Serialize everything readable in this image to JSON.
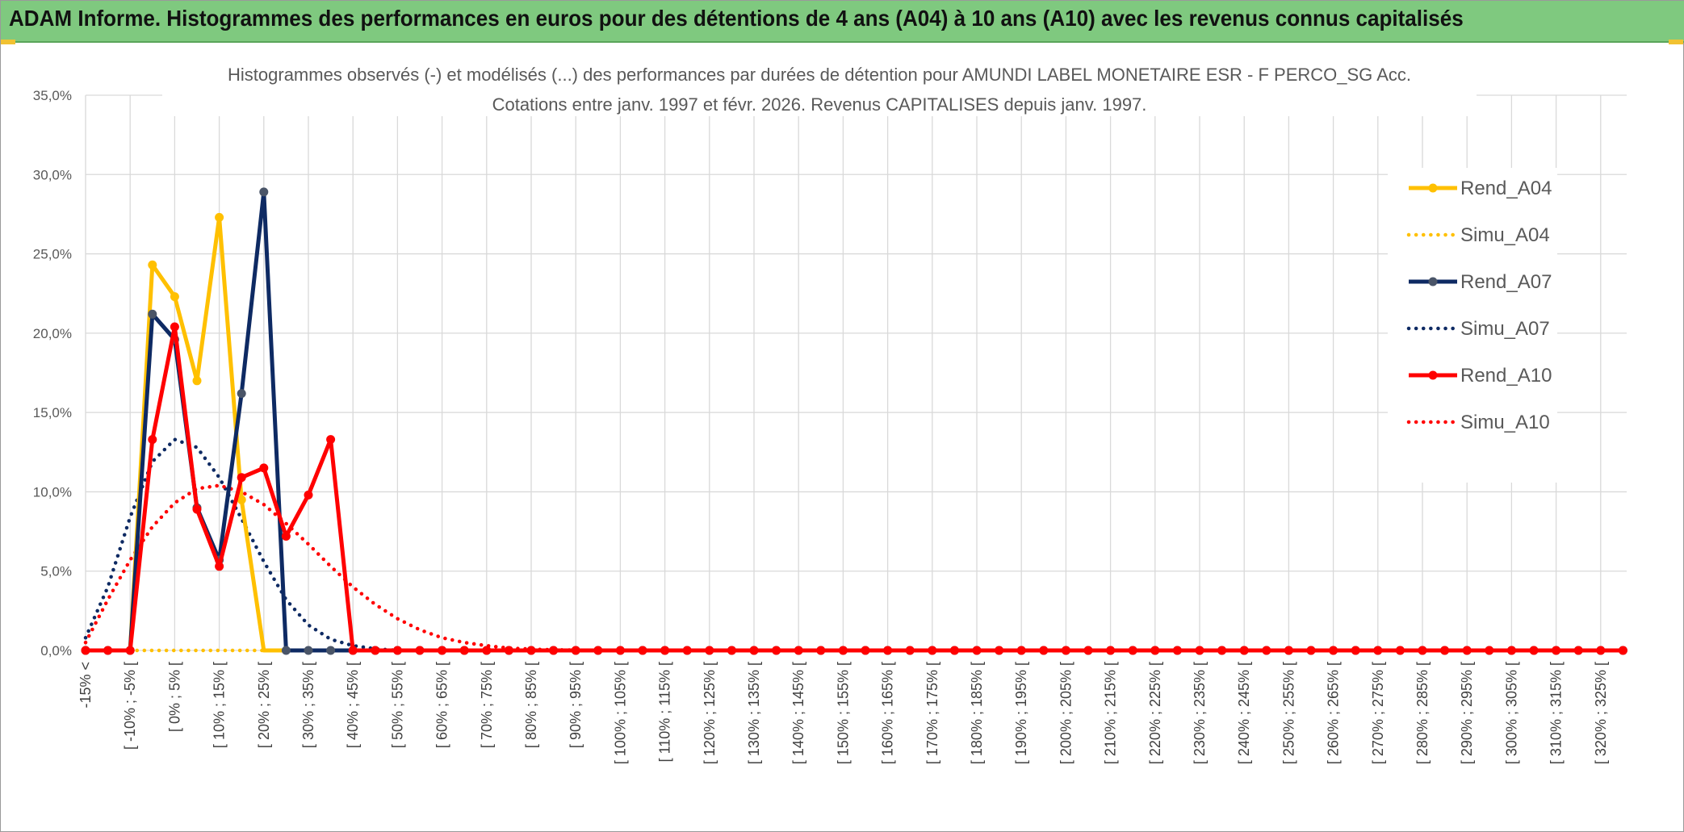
{
  "banner": {
    "title": "ADAM Informe. Histogrammes des performances en euros pour des détentions de 4 ans (A04) à 10 ans (A10) avec les revenus connus capitalisés"
  },
  "colors": {
    "banner_bg": "#7fc97f",
    "accent_corner": "#f1c232",
    "A04": "#ffc000",
    "A07": "#0e2a63",
    "A07_marker": "#4a5568",
    "A10": "#ff0000"
  },
  "chart_data": {
    "type": "line",
    "title_line1": "Histogrammes observés (-) et modélisés (...) des performances par durées de détention pour AMUNDI LABEL MONETAIRE ESR - F PERCO_SG Acc.",
    "title_line2": "Cotations entre janv. 1997 et févr. 2026. Revenus CAPITALISES depuis janv. 1997.",
    "ylim": [
      0,
      35
    ],
    "y_ticks": [
      "0,0%",
      "5,0%",
      "10,0%",
      "15,0%",
      "20,0%",
      "25,0%",
      "30,0%",
      "35,0%"
    ],
    "grid": true,
    "legend_position": "top-right",
    "x_tick_labels": [
      "-15% <",
      "[ -10% ; -5% [",
      "[ 0% ; 5% [",
      "[ 10% ; 15% [",
      "[ 20% ; 25% [",
      "[ 30% ; 35% [",
      "[ 40% ; 45% [",
      "[ 50% ; 55% [",
      "[ 60% ; 65% [",
      "[ 70% ; 75% [",
      "[ 80% ; 85% [",
      "[ 90% ; 95% [",
      "[ 100% ; 105% [",
      "[ 110% ; 115% [",
      "[ 120% ; 125% [",
      "[ 130% ; 135% [",
      "[ 140% ; 145% [",
      "[ 150% ; 155% [",
      "[ 160% ; 165% [",
      "[ 170% ; 175% [",
      "[ 180% ; 185% [",
      "[ 190% ; 195% [",
      "[ 200% ; 205% [",
      "[ 210% ; 215% [",
      "[ 220% ; 225% [",
      "[ 230% ; 235% [",
      "[ 240% ; 245% [",
      "[ 250% ; 255% [",
      "[ 260% ; 265% [",
      "[ 270% ; 275% [",
      "[ 280% ; 285% [",
      "[ 290% ; 295% [",
      "[ 300% ; 305% [",
      "[ 310% ; 315% [",
      "[ 320% ; 325% ["
    ],
    "series": [
      {
        "name": "Rend_A04",
        "style": "solid",
        "color": "#ffc000",
        "values": [
          0,
          0,
          0,
          24.3,
          22.3,
          17.0,
          27.3,
          9.5,
          0,
          0,
          0,
          0,
          0,
          0,
          0,
          0,
          0,
          0,
          0,
          0,
          0,
          0,
          0,
          0,
          0,
          0,
          0,
          0,
          0,
          0,
          0,
          0,
          0,
          0,
          0,
          0,
          0,
          0,
          0,
          0,
          0,
          0,
          0,
          0,
          0,
          0,
          0,
          0,
          0,
          0,
          0,
          0,
          0,
          0,
          0,
          0,
          0,
          0,
          0,
          0,
          0,
          0,
          0,
          0,
          0,
          0,
          0,
          0,
          0,
          0
        ]
      },
      {
        "name": "Simu_A04",
        "style": "dotted",
        "color": "#ffc000",
        "values": [
          0,
          0,
          0,
          0,
          0,
          0,
          0,
          0,
          0,
          0,
          0,
          0,
          0,
          0,
          0,
          0,
          0,
          0,
          0,
          0,
          0,
          0,
          0,
          0,
          0,
          0,
          0,
          0,
          0,
          0,
          0,
          0,
          0,
          0,
          0,
          0,
          0,
          0,
          0,
          0,
          0,
          0,
          0,
          0,
          0,
          0,
          0,
          0,
          0,
          0,
          0,
          0,
          0,
          0,
          0,
          0,
          0,
          0,
          0,
          0,
          0,
          0,
          0,
          0,
          0,
          0,
          0,
          0,
          0,
          0
        ]
      },
      {
        "name": "Rend_A07",
        "style": "solid",
        "color": "#0e2a63",
        "values": [
          0,
          0,
          0,
          21.2,
          19.6,
          9.0,
          5.7,
          16.2,
          28.9,
          0,
          0,
          0,
          0,
          0,
          0,
          0,
          0,
          0,
          0,
          0,
          0,
          0,
          0,
          0,
          0,
          0,
          0,
          0,
          0,
          0,
          0,
          0,
          0,
          0,
          0,
          0,
          0,
          0,
          0,
          0,
          0,
          0,
          0,
          0,
          0,
          0,
          0,
          0,
          0,
          0,
          0,
          0,
          0,
          0,
          0,
          0,
          0,
          0,
          0,
          0,
          0,
          0,
          0,
          0,
          0,
          0,
          0,
          0,
          0,
          0
        ]
      },
      {
        "name": "Simu_A07",
        "style": "dotted",
        "color": "#0e2a63",
        "values": [
          0.8,
          4.0,
          8.4,
          11.9,
          13.3,
          12.8,
          10.9,
          8.3,
          5.6,
          3.2,
          1.6,
          0.7,
          0.3,
          0.1,
          0,
          0,
          0,
          0,
          0,
          0,
          0,
          0,
          0,
          0,
          0,
          0,
          0,
          0,
          0,
          0,
          0,
          0,
          0,
          0,
          0,
          0,
          0,
          0,
          0,
          0,
          0,
          0,
          0,
          0,
          0,
          0,
          0,
          0,
          0,
          0,
          0,
          0,
          0,
          0,
          0,
          0,
          0,
          0,
          0,
          0,
          0,
          0,
          0,
          0,
          0,
          0,
          0,
          0,
          0,
          0
        ]
      },
      {
        "name": "Rend_A10",
        "style": "solid",
        "color": "#ff0000",
        "values": [
          0,
          0,
          0,
          13.3,
          20.4,
          8.9,
          5.3,
          10.9,
          11.5,
          7.2,
          9.8,
          13.3,
          0,
          0,
          0,
          0,
          0,
          0,
          0,
          0,
          0,
          0,
          0,
          0,
          0,
          0,
          0,
          0,
          0,
          0,
          0,
          0,
          0,
          0,
          0,
          0,
          0,
          0,
          0,
          0,
          0,
          0,
          0,
          0,
          0,
          0,
          0,
          0,
          0,
          0,
          0,
          0,
          0,
          0,
          0,
          0,
          0,
          0,
          0,
          0,
          0,
          0,
          0,
          0,
          0,
          0,
          0,
          0,
          0,
          0
        ]
      },
      {
        "name": "Simu_A10",
        "style": "dotted",
        "color": "#ff0000",
        "values": [
          0.5,
          3.2,
          5.7,
          7.8,
          9.3,
          10.2,
          10.4,
          10.0,
          9.2,
          8.0,
          6.7,
          5.3,
          4.0,
          2.9,
          2.0,
          1.3,
          0.8,
          0.5,
          0.3,
          0.15,
          0.08,
          0.04,
          0.02,
          0,
          0,
          0,
          0,
          0,
          0,
          0,
          0,
          0,
          0,
          0,
          0,
          0,
          0,
          0,
          0,
          0,
          0,
          0,
          0,
          0,
          0,
          0,
          0,
          0,
          0,
          0,
          0,
          0,
          0,
          0,
          0,
          0,
          0,
          0,
          0,
          0,
          0,
          0,
          0,
          0,
          0,
          0,
          0,
          0,
          0,
          0
        ]
      }
    ]
  }
}
